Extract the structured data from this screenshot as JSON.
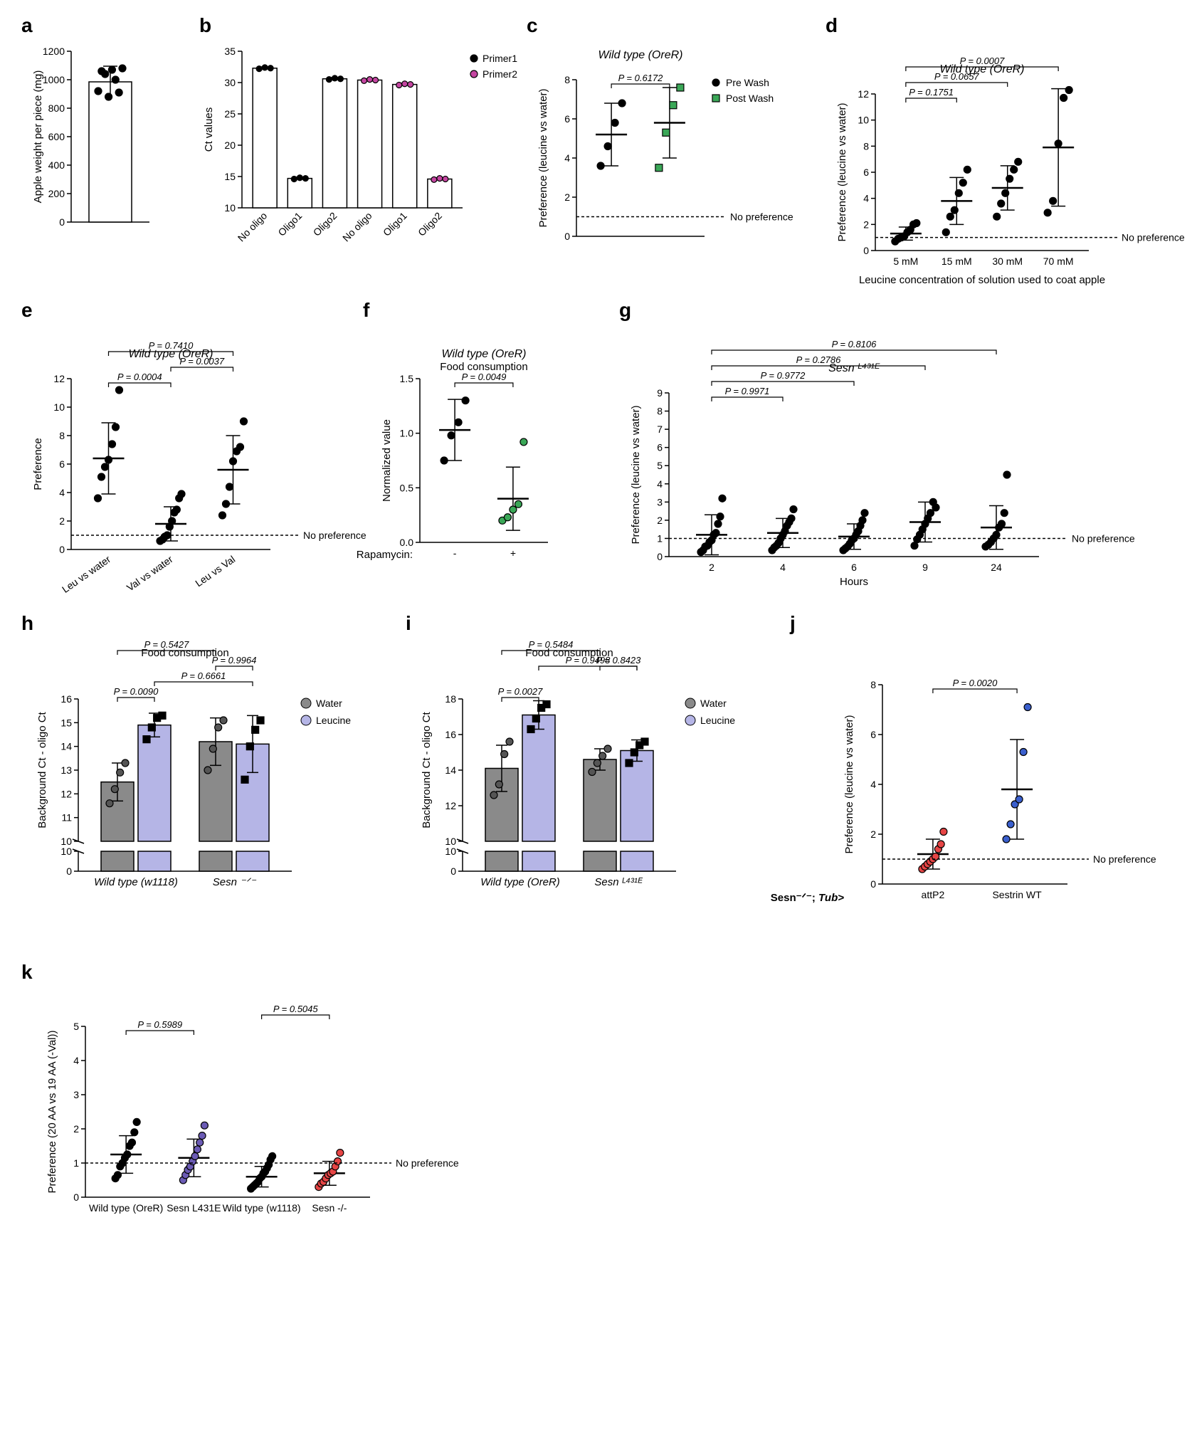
{
  "global": {
    "no_preference_label": "No preference",
    "colors": {
      "black": "#000000",
      "white": "#ffffff",
      "magenta": "#c445a1",
      "green": "#3aa757",
      "gray_bar": "#8a8a8a",
      "lavender_bar": "#b5b5e6",
      "red": "#e64545",
      "blue": "#3a5fcd",
      "purple": "#6b5bb5"
    }
  },
  "panels": {
    "a": {
      "letter": "a",
      "ylabel": "Apple weight per piece (mg)",
      "ylim": [
        0,
        1200
      ],
      "ytick_step": 200,
      "mean": 985,
      "sd": 110,
      "points": [
        920,
        1060,
        1040,
        880,
        1070,
        1000,
        910,
        1080
      ],
      "point_color": "#000000",
      "bar_color": "#ffffff"
    },
    "b": {
      "letter": "b",
      "ylabel": "Ct values",
      "ylim": [
        10,
        35
      ],
      "ytick_step": 5,
      "x_labels": [
        "No oligo",
        "Oligo1",
        "Oligo2",
        "No oligo",
        "Oligo1",
        "Oligo2"
      ],
      "means": [
        32.3,
        14.7,
        30.6,
        30.4,
        29.7,
        14.6
      ],
      "sds": [
        0.2,
        0.2,
        0.2,
        0.2,
        0.2,
        0.2
      ],
      "series_color": [
        "#000000",
        "#000000",
        "#000000",
        "#c445a1",
        "#c445a1",
        "#c445a1"
      ],
      "points": [
        [
          32.2,
          32.4,
          32.3
        ],
        [
          14.6,
          14.8,
          14.7
        ],
        [
          30.5,
          30.7,
          30.6
        ],
        [
          30.3,
          30.5,
          30.4
        ],
        [
          29.6,
          29.8,
          29.7
        ],
        [
          14.5,
          14.7,
          14.6
        ]
      ],
      "bar_color": "#ffffff",
      "legend": [
        {
          "label": "Primer1",
          "color": "#000000"
        },
        {
          "label": "Primer2",
          "color": "#c445a1"
        }
      ]
    },
    "c": {
      "letter": "c",
      "title": "Wild type (OreR)",
      "ylabel": "Preference (leucine vs water)",
      "ylim": [
        0,
        8
      ],
      "ytick_step": 2,
      "x_labels": [
        "",
        ""
      ],
      "groups": [
        {
          "label": "Pre Wash",
          "mean": 5.2,
          "sd": 1.6,
          "points": [
            3.6,
            4.6,
            5.8,
            6.8
          ],
          "color": "#000000"
        },
        {
          "label": "Post Wash",
          "mean": 5.8,
          "sd": 1.8,
          "points": [
            3.5,
            5.3,
            6.7,
            7.6
          ],
          "color": "#3aa757",
          "marker": "square"
        }
      ],
      "legend": [
        {
          "label": "Pre Wash",
          "color": "#000000",
          "marker": "circle"
        },
        {
          "label": "Post Wash",
          "color": "#3aa757",
          "marker": "square"
        }
      ],
      "pvals": [
        {
          "g": [
            0,
            1
          ],
          "text": "P = 0.6172"
        }
      ],
      "no_pref_y": 1
    },
    "d": {
      "letter": "d",
      "title": "Wild type (OreR)",
      "ylabel": "Preference (leucine vs water)",
      "xlabel": "Leucine concentration of solution used to coat apple",
      "ylim": [
        0,
        12
      ],
      "ytick_step": 2,
      "x_labels": [
        "5 mM",
        "15 mM",
        "30 mM",
        "70 mM"
      ],
      "groups": [
        {
          "mean": 1.3,
          "sd": 0.5,
          "points": [
            0.7,
            0.9,
            1.0,
            1.1,
            1.4,
            1.6,
            2.0,
            2.1
          ]
        },
        {
          "mean": 3.8,
          "sd": 1.8,
          "points": [
            1.4,
            2.6,
            3.1,
            4.4,
            5.2,
            6.2
          ]
        },
        {
          "mean": 4.8,
          "sd": 1.7,
          "points": [
            2.6,
            3.6,
            4.4,
            5.5,
            6.2,
            6.8
          ]
        },
        {
          "mean": 7.9,
          "sd": 4.5,
          "points": [
            2.9,
            3.8,
            8.2,
            11.7,
            12.3
          ]
        }
      ],
      "point_color": "#000000",
      "pvals": [
        {
          "g": [
            0,
            1
          ],
          "text": "P = 0.1751"
        },
        {
          "g": [
            0,
            2
          ],
          "text": "P = 0.0657"
        },
        {
          "g": [
            0,
            3
          ],
          "text": "P = 0.0007"
        }
      ],
      "no_pref_y": 1
    },
    "e": {
      "letter": "e",
      "title": "Wild type (OreR)",
      "ylabel": "Preference",
      "ylim": [
        0,
        12
      ],
      "ytick_step": 2,
      "x_labels": [
        "Leu vs water",
        "Val vs water",
        "Leu vs Val"
      ],
      "groups": [
        {
          "mean": 6.4,
          "sd": 2.5,
          "points": [
            3.6,
            5.1,
            5.8,
            6.3,
            7.4,
            8.6,
            11.2
          ]
        },
        {
          "mean": 1.8,
          "sd": 1.2,
          "points": [
            0.6,
            0.7,
            0.9,
            1.0,
            1.6,
            2.0,
            2.6,
            2.8,
            3.6,
            3.9
          ]
        },
        {
          "mean": 5.6,
          "sd": 2.4,
          "points": [
            2.4,
            3.2,
            4.4,
            6.2,
            6.9,
            7.2,
            9.0
          ]
        }
      ],
      "point_color": "#000000",
      "pvals": [
        {
          "g": [
            0,
            1
          ],
          "text": "P = 0.0004"
        },
        {
          "g": [
            1,
            2
          ],
          "text": "P = 0.0037"
        },
        {
          "g": [
            0,
            2
          ],
          "text": "P = 0.7410"
        }
      ],
      "no_pref_y": 1
    },
    "f": {
      "letter": "f",
      "title": "Wild type (OreR)",
      "subtitle": "Food consumption",
      "ylabel": "Normalized value",
      "xlabel_left": "Rapamycin:",
      "ylim": [
        0,
        1.5
      ],
      "ytick_step": 0.5,
      "x_labels": [
        "-",
        "+"
      ],
      "groups": [
        {
          "mean": 1.03,
          "sd": 0.28,
          "points": [
            0.75,
            0.98,
            1.1,
            1.3
          ],
          "color": "#000000"
        },
        {
          "mean": 0.4,
          "sd": 0.29,
          "points": [
            0.2,
            0.23,
            0.3,
            0.35,
            0.92
          ],
          "color": "#3aa757"
        }
      ],
      "pvals": [
        {
          "g": [
            0,
            1
          ],
          "text": "P = 0.0049"
        }
      ]
    },
    "g": {
      "letter": "g",
      "title": "Sesn ᴸ⁴³¹ᴱ",
      "ylabel": "Preference (leucine vs water)",
      "xlabel": "Hours",
      "ylim": [
        0,
        9
      ],
      "ytick_step": 1,
      "x_labels": [
        "2",
        "4",
        "6",
        "9",
        "24"
      ],
      "groups": [
        {
          "mean": 1.2,
          "sd": 1.1,
          "points": [
            0.25,
            0.35,
            0.55,
            0.6,
            0.8,
            0.9,
            1.2,
            1.3,
            1.8,
            2.2,
            3.2
          ]
        },
        {
          "mean": 1.3,
          "sd": 0.8,
          "points": [
            0.35,
            0.5,
            0.6,
            0.75,
            1.0,
            1.2,
            1.4,
            1.7,
            1.9,
            2.1,
            2.6
          ]
        },
        {
          "mean": 1.1,
          "sd": 0.7,
          "points": [
            0.35,
            0.45,
            0.55,
            0.7,
            0.9,
            1.0,
            1.2,
            1.4,
            1.7,
            2.0,
            2.4
          ]
        },
        {
          "mean": 1.9,
          "sd": 1.1,
          "points": [
            0.6,
            0.95,
            1.2,
            1.5,
            1.8,
            2.1,
            2.4,
            3.0,
            2.7
          ]
        },
        {
          "mean": 1.6,
          "sd": 1.2,
          "points": [
            0.55,
            0.65,
            0.8,
            1.0,
            1.2,
            1.6,
            1.8,
            2.4,
            4.5
          ]
        }
      ],
      "point_color": "#000000",
      "pvals": [
        {
          "g": [
            0,
            1
          ],
          "text": "P = 0.9971"
        },
        {
          "g": [
            0,
            2
          ],
          "text": "P = 0.9772"
        },
        {
          "g": [
            0,
            3
          ],
          "text": "P = 0.2786"
        },
        {
          "g": [
            0,
            4
          ],
          "text": "P = 0.8106"
        }
      ],
      "no_pref_y": 1
    },
    "h": {
      "letter": "h",
      "title": "Food consumption",
      "ylabel": "Background Ct - oligo Ct",
      "x_group_labels": [
        "Wild type (w1118)",
        "Sesn ⁻ᐟ⁻"
      ],
      "legend": [
        {
          "label": "Water",
          "color": "#8a8a8a"
        },
        {
          "label": "Leucine",
          "color": "#b5b5e6"
        }
      ],
      "ylim_lower": [
        0,
        10
      ],
      "ylim_upper": [
        10,
        16
      ],
      "ytick_upper_step": 1,
      "bars": [
        {
          "mean": 12.5,
          "sd": 0.8,
          "points": [
            11.6,
            12.2,
            12.9,
            13.3
          ],
          "fill": "#8a8a8a",
          "marker": "circle"
        },
        {
          "mean": 14.9,
          "sd": 0.5,
          "points": [
            14.3,
            14.8,
            15.2,
            15.3
          ],
          "fill": "#b5b5e6",
          "marker": "square"
        },
        {
          "mean": 14.2,
          "sd": 1.0,
          "points": [
            13.0,
            13.9,
            14.8,
            15.1
          ],
          "fill": "#8a8a8a",
          "marker": "circle"
        },
        {
          "mean": 14.1,
          "sd": 1.2,
          "points": [
            12.6,
            14.0,
            14.7,
            15.1
          ],
          "fill": "#b5b5e6",
          "marker": "square"
        }
      ],
      "pvals": [
        {
          "b": [
            0,
            1
          ],
          "text": "P = 0.0090"
        },
        {
          "b": [
            1,
            3
          ],
          "text": "P = 0.6661"
        },
        {
          "b": [
            2,
            3
          ],
          "text": "P = 0.9964"
        },
        {
          "b": [
            0,
            2
          ],
          "text": "P = 0.5427",
          "level": 3
        }
      ]
    },
    "i": {
      "letter": "i",
      "title": "Food consumption",
      "ylabel": "Background Ct - oligo Ct",
      "x_group_labels": [
        "Wild type (OreR)",
        "Sesn ᴸ⁴³¹ᴱ"
      ],
      "legend": [
        {
          "label": "Water",
          "color": "#8a8a8a"
        },
        {
          "label": "Leucine",
          "color": "#b5b5e6"
        }
      ],
      "ylim_lower": [
        0,
        10
      ],
      "ylim_upper": [
        10,
        18
      ],
      "ytick_upper_step": 2,
      "bars": [
        {
          "mean": 14.1,
          "sd": 1.3,
          "points": [
            12.6,
            13.2,
            14.9,
            15.6
          ],
          "fill": "#8a8a8a",
          "marker": "circle"
        },
        {
          "mean": 17.1,
          "sd": 0.8,
          "points": [
            16.3,
            16.9,
            17.5,
            17.7
          ],
          "fill": "#b5b5e6",
          "marker": "square"
        },
        {
          "mean": 14.6,
          "sd": 0.6,
          "points": [
            13.9,
            14.4,
            14.8,
            15.2
          ],
          "fill": "#8a8a8a",
          "marker": "circle"
        },
        {
          "mean": 15.1,
          "sd": 0.6,
          "points": [
            14.4,
            15.0,
            15.4,
            15.6
          ],
          "fill": "#b5b5e6",
          "marker": "square"
        }
      ],
      "pvals": [
        {
          "b": [
            0,
            1
          ],
          "text": "P = 0.0027"
        },
        {
          "b": [
            1,
            3
          ],
          "text": "P = 0.9498",
          "level": 2
        },
        {
          "b": [
            2,
            3
          ],
          "text": "P = 0.8423"
        },
        {
          "b": [
            0,
            2
          ],
          "text": "P = 0.5484",
          "level": 3
        }
      ]
    },
    "j": {
      "letter": "j",
      "ylabel": "Preference (leucine vs water)",
      "ylim": [
        0,
        8
      ],
      "ytick_step": 2,
      "xaxis_left_label": "Sesn⁻ᐟ⁻; Tub>",
      "x_labels": [
        "attP2",
        "Sestrin WT"
      ],
      "groups": [
        {
          "mean": 1.2,
          "sd": 0.6,
          "points": [
            0.6,
            0.7,
            0.8,
            0.9,
            1.0,
            1.1,
            1.4,
            1.6,
            2.1
          ],
          "color": "#e64545"
        },
        {
          "mean": 3.8,
          "sd": 2.0,
          "points": [
            1.8,
            2.4,
            3.2,
            3.4,
            5.3,
            7.1
          ],
          "color": "#3a5fcd"
        }
      ],
      "pvals": [
        {
          "g": [
            0,
            1
          ],
          "text": "P = 0.0020"
        }
      ],
      "no_pref_y": 1
    },
    "k": {
      "letter": "k",
      "ylabel": "Preference (20 AA vs 19 AA (-Val))",
      "ylim": [
        0,
        5
      ],
      "ytick_step": 1,
      "x_labels": [
        "Wild type (OreR)",
        "Sesn L431E",
        "Wild type (w1118)",
        "Sesn -/-"
      ],
      "groups": [
        {
          "mean": 1.25,
          "sd": 0.55,
          "points": [
            0.55,
            0.65,
            0.9,
            1.0,
            1.15,
            1.25,
            1.5,
            1.6,
            1.9,
            2.2
          ],
          "color": "#000000"
        },
        {
          "mean": 1.15,
          "sd": 0.55,
          "points": [
            0.5,
            0.65,
            0.8,
            0.9,
            1.05,
            1.2,
            1.4,
            1.6,
            1.8,
            2.1
          ],
          "color": "#6b5bb5"
        },
        {
          "mean": 0.6,
          "sd": 0.3,
          "points": [
            0.25,
            0.3,
            0.35,
            0.4,
            0.45,
            0.55,
            0.6,
            0.7,
            0.75,
            0.85,
            0.95,
            1.1,
            1.2
          ],
          "color": "#000000"
        },
        {
          "mean": 0.7,
          "sd": 0.35,
          "points": [
            0.3,
            0.4,
            0.45,
            0.55,
            0.65,
            0.7,
            0.75,
            0.9,
            1.05,
            1.3
          ],
          "color": "#e64545"
        }
      ],
      "pvals": [
        {
          "g": [
            0,
            1
          ],
          "text": "P = 0.5989"
        },
        {
          "g": [
            2,
            3
          ],
          "text": "P = 0.5045"
        }
      ],
      "no_pref_y": 1
    }
  }
}
